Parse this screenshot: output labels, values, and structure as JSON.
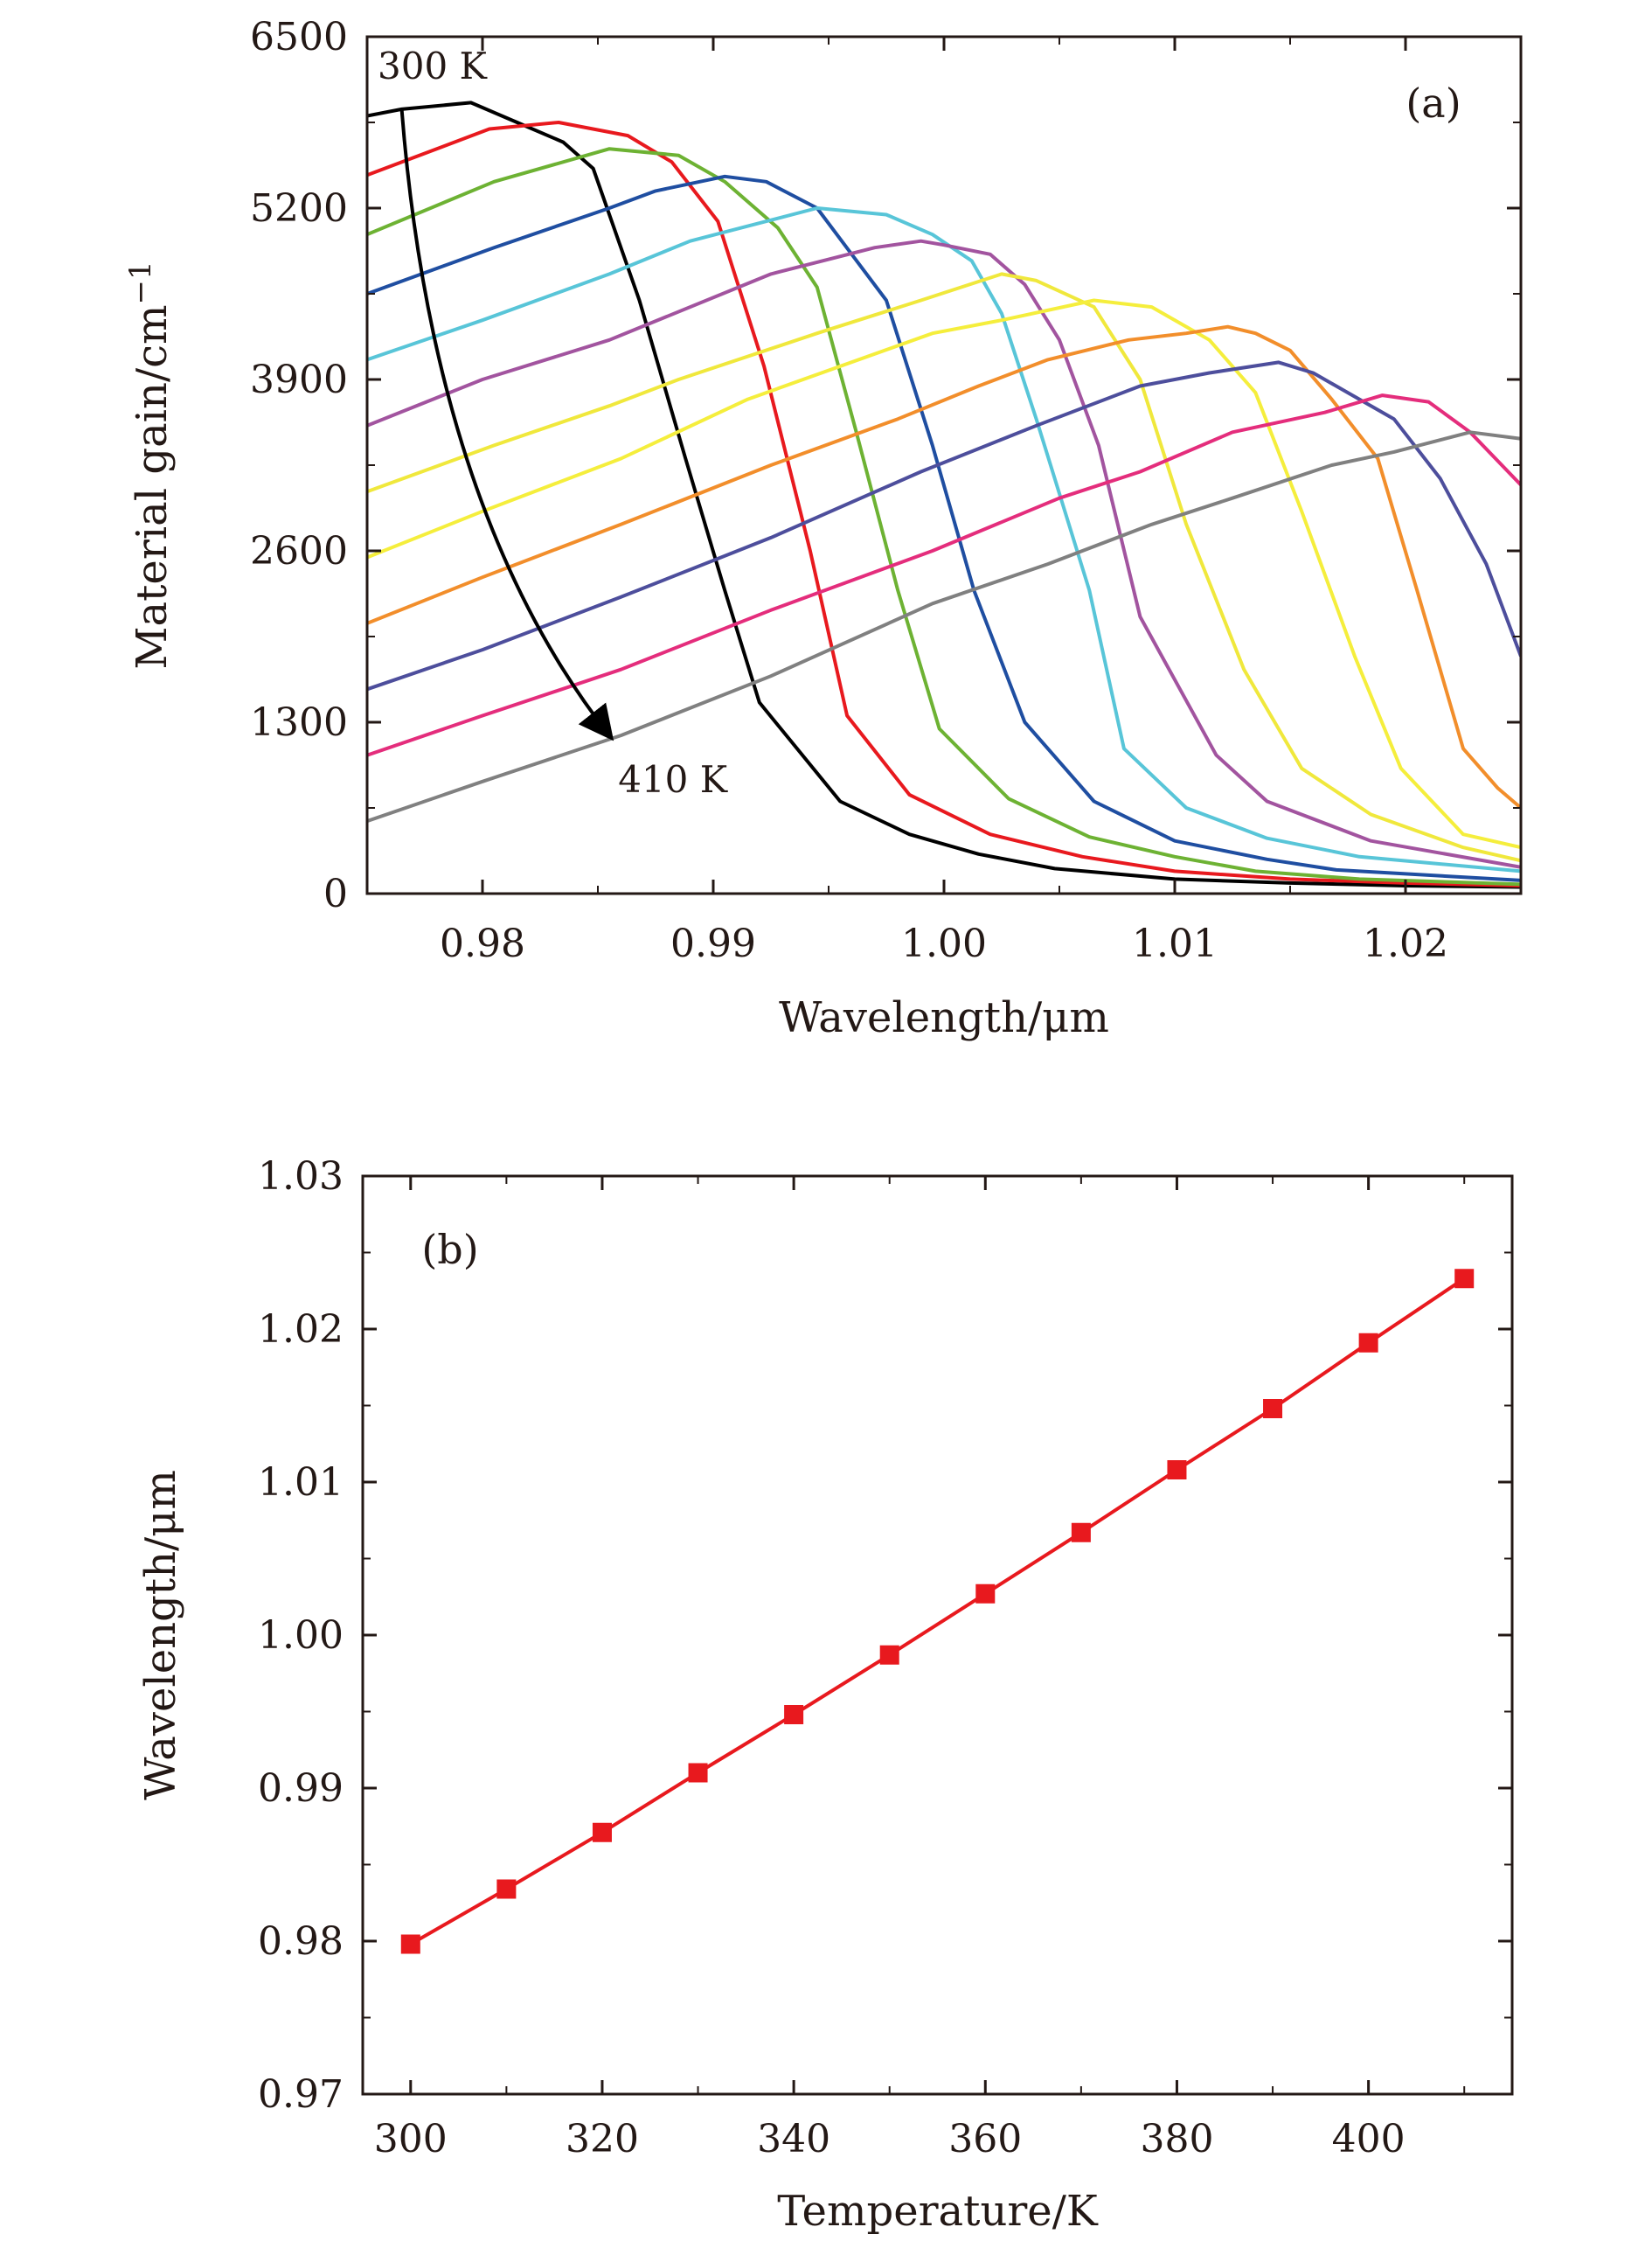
{
  "chart_data": [
    {
      "type": "line",
      "panel_label": "(a)",
      "xlabel": "Wavelength/μm",
      "ylabel": "Material gain/cm",
      "ylabel_sup": "−1",
      "xlim": [
        0.975,
        1.025
      ],
      "ylim": [
        0,
        6500
      ],
      "xticks": [
        "0.98",
        "0.99",
        "1.00",
        "1.01",
        "1.02"
      ],
      "xtick_values": [
        0.98,
        0.99,
        1.0,
        1.01,
        1.02
      ],
      "yticks": [
        "0",
        "1300",
        "2600",
        "3900",
        "5200",
        "6500"
      ],
      "ytick_values": [
        0,
        1300,
        2600,
        3900,
        5200,
        6500
      ],
      "annotations": {
        "start": "300 K",
        "end": "410 K"
      },
      "arrow": {
        "from": [
          0.9765,
          5950
        ],
        "via": [
          0.979,
          2900
        ],
        "to": [
          0.9855,
          1200
        ]
      },
      "series": [
        {
          "color": "#000000",
          "points": [
            [
              0.975,
              5900
            ],
            [
              0.9765,
              5950
            ],
            [
              0.9795,
              6000
            ],
            [
              0.9815,
              5850
            ],
            [
              0.9835,
              5700
            ],
            [
              0.9848,
              5500
            ],
            [
              0.9868,
              4500
            ],
            [
              0.9888,
              3300
            ],
            [
              0.9905,
              2300
            ],
            [
              0.992,
              1450
            ],
            [
              0.9955,
              700
            ],
            [
              0.9985,
              450
            ],
            [
              1.0015,
              300
            ],
            [
              1.0048,
              190
            ],
            [
              1.01,
              110
            ],
            [
              1.015,
              80
            ],
            [
              1.02,
              60
            ],
            [
              1.025,
              50
            ]
          ]
        },
        {
          "color": "#e8191e",
          "points": [
            [
              0.975,
              5450
            ],
            [
              0.9803,
              5800
            ],
            [
              0.9833,
              5850
            ],
            [
              0.9863,
              5750
            ],
            [
              0.9882,
              5550
            ],
            [
              0.9902,
              5100
            ],
            [
              0.9922,
              4000
            ],
            [
              0.9942,
              2600
            ],
            [
              0.9958,
              1350
            ],
            [
              0.9985,
              750
            ],
            [
              1.002,
              450
            ],
            [
              1.006,
              280
            ],
            [
              1.01,
              170
            ],
            [
              1.015,
              110
            ],
            [
              1.02,
              80
            ],
            [
              1.025,
              60
            ]
          ]
        },
        {
          "color": "#6db233",
          "points": [
            [
              0.975,
              5000
            ],
            [
              0.9805,
              5400
            ],
            [
              0.9855,
              5650
            ],
            [
              0.9885,
              5600
            ],
            [
              0.9905,
              5400
            ],
            [
              0.9928,
              5050
            ],
            [
              0.9945,
              4600
            ],
            [
              0.9962,
              3500
            ],
            [
              0.998,
              2300
            ],
            [
              0.9998,
              1250
            ],
            [
              1.0028,
              720
            ],
            [
              1.0063,
              430
            ],
            [
              1.01,
              280
            ],
            [
              1.0135,
              170
            ],
            [
              1.018,
              110
            ],
            [
              1.025,
              70
            ]
          ]
        },
        {
          "color": "#1f4ea1",
          "points": [
            [
              0.975,
              4550
            ],
            [
              0.9805,
              4900
            ],
            [
              0.9855,
              5200
            ],
            [
              0.9875,
              5330
            ],
            [
              0.9905,
              5440
            ],
            [
              0.9923,
              5400
            ],
            [
              0.9945,
              5200
            ],
            [
              0.996,
              4850
            ],
            [
              0.9975,
              4500
            ],
            [
              0.9995,
              3400
            ],
            [
              1.0013,
              2300
            ],
            [
              1.0035,
              1300
            ],
            [
              1.0065,
              700
            ],
            [
              1.01,
              400
            ],
            [
              1.014,
              260
            ],
            [
              1.017,
              180
            ],
            [
              1.025,
              100
            ]
          ]
        },
        {
          "color": "#58c5d8",
          "points": [
            [
              0.975,
              4050
            ],
            [
              0.98,
              4350
            ],
            [
              0.9855,
              4700
            ],
            [
              0.989,
              4950
            ],
            [
              0.9945,
              5200
            ],
            [
              0.9975,
              5150
            ],
            [
              0.9995,
              5000
            ],
            [
              1.0012,
              4800
            ],
            [
              1.0025,
              4400
            ],
            [
              1.004,
              3600
            ],
            [
              1.0063,
              2300
            ],
            [
              1.0078,
              1100
            ],
            [
              1.0105,
              650
            ],
            [
              1.014,
              420
            ],
            [
              1.018,
              280
            ],
            [
              1.025,
              170
            ]
          ]
        },
        {
          "color": "#a2549f",
          "points": [
            [
              0.975,
              3550
            ],
            [
              0.98,
              3900
            ],
            [
              0.9855,
              4200
            ],
            [
              0.9925,
              4700
            ],
            [
              0.997,
              4900
            ],
            [
              0.999,
              4950
            ],
            [
              1.0,
              4920
            ],
            [
              1.002,
              4850
            ],
            [
              1.0035,
              4620
            ],
            [
              1.005,
              4200
            ],
            [
              1.0067,
              3400
            ],
            [
              1.0085,
              2100
            ],
            [
              1.0118,
              1050
            ],
            [
              1.014,
              700
            ],
            [
              1.0185,
              400
            ],
            [
              1.025,
              200
            ]
          ]
        },
        {
          "color": "#f0e83c",
          "points": [
            [
              0.975,
              3050
            ],
            [
              0.9805,
              3400
            ],
            [
              0.9855,
              3700
            ],
            [
              0.9885,
              3900
            ],
            [
              0.9945,
              4250
            ],
            [
              0.999,
              4500
            ],
            [
              1.0025,
              4700
            ],
            [
              1.004,
              4650
            ],
            [
              1.0065,
              4450
            ],
            [
              1.0085,
              3900
            ],
            [
              1.0105,
              2800
            ],
            [
              1.013,
              1700
            ],
            [
              1.0155,
              950
            ],
            [
              1.0185,
              600
            ],
            [
              1.0225,
              350
            ],
            [
              1.025,
              250
            ]
          ]
        },
        {
          "color": "#f5ee3c",
          "points": [
            [
              0.975,
              2550
            ],
            [
              0.98,
              2900
            ],
            [
              0.986,
              3300
            ],
            [
              0.9915,
              3750
            ],
            [
              0.9995,
              4250
            ],
            [
              1.0025,
              4350
            ],
            [
              1.0065,
              4500
            ],
            [
              1.009,
              4450
            ],
            [
              1.0115,
              4200
            ],
            [
              1.0135,
              3800
            ],
            [
              1.0155,
              2900
            ],
            [
              1.0178,
              1800
            ],
            [
              1.0198,
              950
            ],
            [
              1.0225,
              450
            ],
            [
              1.025,
              350
            ]
          ]
        },
        {
          "color": "#f28e2b",
          "points": [
            [
              0.975,
              2050
            ],
            [
              0.98,
              2400
            ],
            [
              0.986,
              2800
            ],
            [
              0.9925,
              3250
            ],
            [
              0.998,
              3600
            ],
            [
              1.0015,
              3850
            ],
            [
              1.0045,
              4050
            ],
            [
              1.008,
              4200
            ],
            [
              1.0105,
              4250
            ],
            [
              1.0123,
              4300
            ],
            [
              1.0135,
              4250
            ],
            [
              1.015,
              4120
            ],
            [
              1.0168,
              3750
            ],
            [
              1.0188,
              3300
            ],
            [
              1.0205,
              2300
            ],
            [
              1.0225,
              1100
            ],
            [
              1.024,
              800
            ],
            [
              1.025,
              650
            ]
          ]
        },
        {
          "color": "#4d4e9c",
          "points": [
            [
              0.975,
              1550
            ],
            [
              0.98,
              1850
            ],
            [
              0.986,
              2250
            ],
            [
              0.9925,
              2700
            ],
            [
              0.999,
              3200
            ],
            [
              1.004,
              3550
            ],
            [
              1.0085,
              3850
            ],
            [
              1.0115,
              3950
            ],
            [
              1.0145,
              4030
            ],
            [
              1.016,
              3950
            ],
            [
              1.0175,
              3800
            ],
            [
              1.0195,
              3600
            ],
            [
              1.0215,
              3150
            ],
            [
              1.0235,
              2500
            ],
            [
              1.025,
              1800
            ]
          ]
        },
        {
          "color": "#e42d7c",
          "points": [
            [
              0.975,
              1050
            ],
            [
              0.98,
              1350
            ],
            [
              0.986,
              1700
            ],
            [
              0.9925,
              2150
            ],
            [
              0.9995,
              2600
            ],
            [
              1.005,
              3000
            ],
            [
              1.0085,
              3200
            ],
            [
              1.0125,
              3500
            ],
            [
              1.0165,
              3650
            ],
            [
              1.019,
              3780
            ],
            [
              1.021,
              3730
            ],
            [
              1.0228,
              3500
            ],
            [
              1.025,
              3100
            ]
          ]
        },
        {
          "color": "#808080",
          "points": [
            [
              0.975,
              550
            ],
            [
              0.98,
              850
            ],
            [
              0.986,
              1200
            ],
            [
              0.9925,
              1650
            ],
            [
              0.9995,
              2200
            ],
            [
              1.0045,
              2500
            ],
            [
              1.009,
              2800
            ],
            [
              1.0125,
              3000
            ],
            [
              1.0168,
              3250
            ],
            [
              1.0195,
              3350
            ],
            [
              1.0228,
              3500
            ],
            [
              1.025,
              3450
            ]
          ]
        }
      ]
    },
    {
      "type": "line",
      "panel_label": "(b)",
      "xlabel": "Temperature/K",
      "ylabel": "Wavelength/μm",
      "xlim": [
        295,
        415
      ],
      "ylim": [
        0.97,
        1.03
      ],
      "xticks": [
        "300",
        "320",
        "340",
        "360",
        "380",
        "400"
      ],
      "xtick_values": [
        300,
        320,
        340,
        360,
        380,
        400
      ],
      "yticks": [
        "0.97",
        "0.98",
        "0.99",
        "1.00",
        "1.01",
        "1.02",
        "1.03"
      ],
      "ytick_values": [
        0.97,
        0.98,
        0.99,
        1.0,
        1.01,
        1.02,
        1.03
      ],
      "series": [
        {
          "color": "#e8191e",
          "marker": "square",
          "x": [
            300,
            310,
            320,
            330,
            340,
            350,
            360,
            370,
            380,
            390,
            400,
            410
          ],
          "y": [
            0.9798,
            0.9834,
            0.9871,
            0.991,
            0.9948,
            0.9987,
            1.0027,
            1.0067,
            1.0108,
            1.0148,
            1.0191,
            1.0233
          ]
        }
      ]
    }
  ]
}
